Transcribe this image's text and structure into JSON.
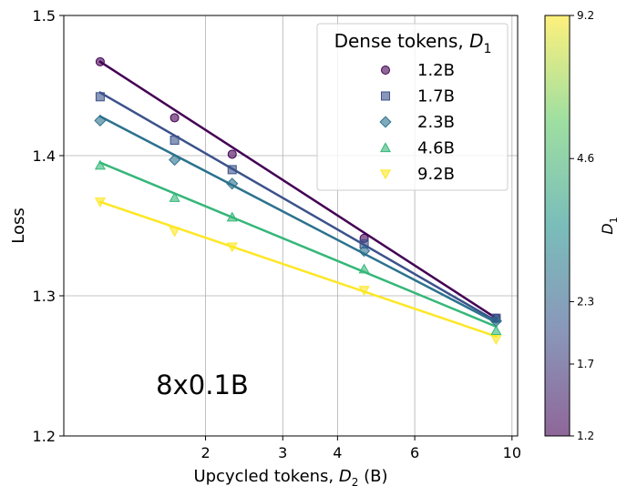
{
  "chart_data": {
    "type": "scatter",
    "title": "",
    "annotation": "8x0.1B",
    "xlabel_main": "Upcycled tokens, ",
    "xlabel_var": "D",
    "xlabel_sub": "2",
    "xlabel_unit": " (B)",
    "ylabel": "Loss",
    "xscale": "log",
    "xlim": [
      0.95,
      10.3
    ],
    "ylim": [
      1.2,
      1.5
    ],
    "x_ticks": [
      2,
      3,
      4,
      6,
      10
    ],
    "x_tick_labels": [
      "2",
      "3",
      "4",
      "6",
      "10"
    ],
    "y_ticks": [
      1.2,
      1.3,
      1.4,
      1.5
    ],
    "y_tick_labels": [
      "1.2",
      "1.3",
      "1.4",
      "1.5"
    ],
    "grid": true,
    "legend": {
      "placement": "top-right",
      "title_main": "Dense tokens, ",
      "title_var": "D",
      "title_sub": "1"
    },
    "colorbar": {
      "label_var": "D",
      "label_sub": "1",
      "ticks": [
        1.2,
        1.7,
        2.3,
        4.6,
        9.2
      ],
      "tick_labels": [
        "1.2",
        "1.7",
        "2.3",
        "4.6",
        "9.2"
      ],
      "range": [
        1.2,
        9.2
      ],
      "scale": "log"
    },
    "x": [
      1.15,
      1.7,
      2.3,
      4.6,
      9.2
    ],
    "series": [
      {
        "name": "1.2B",
        "marker": "circle",
        "color": "#440154",
        "values": [
          1.467,
          1.427,
          1.401,
          1.341,
          1.284
        ],
        "fit": [
          1.467,
          1.284
        ]
      },
      {
        "name": "1.7B",
        "marker": "square",
        "color": "#3b528b",
        "values": [
          1.442,
          1.411,
          1.39,
          1.337,
          1.284
        ],
        "fit": [
          1.445,
          1.282
        ]
      },
      {
        "name": "2.3B",
        "marker": "diamond",
        "color": "#2c728e",
        "values": [
          1.425,
          1.397,
          1.38,
          1.332,
          1.282
        ],
        "fit": [
          1.428,
          1.281
        ]
      },
      {
        "name": "4.6B",
        "marker": "triangle-up",
        "color": "#35b779",
        "values": [
          1.393,
          1.37,
          1.356,
          1.319,
          1.275
        ],
        "fit": [
          1.395,
          1.278
        ]
      },
      {
        "name": "9.2B",
        "marker": "triangle-down",
        "color": "#fde725",
        "values": [
          1.367,
          1.346,
          1.335,
          1.304,
          1.269
        ],
        "fit": [
          1.367,
          1.271
        ]
      }
    ]
  }
}
